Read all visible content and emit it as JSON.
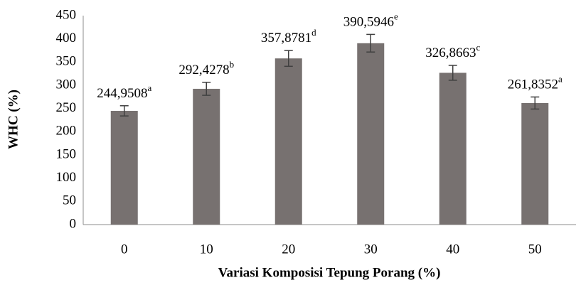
{
  "chart_data": {
    "type": "bar",
    "x_label": "Variasi Komposisi Tepung Porang (%)",
    "y_label": "WHC (%)",
    "categories": [
      "0",
      "10",
      "20",
      "30",
      "40",
      "50"
    ],
    "values": [
      244.9508,
      292.4278,
      357.8781,
      390.5946,
      326.8663,
      261.8352
    ],
    "value_labels": [
      "244,9508",
      "292,4278",
      "357,8781",
      "390,5946",
      "326,8663",
      "261,8352"
    ],
    "significance": [
      "a",
      "b",
      "d",
      "e",
      "c",
      "a"
    ],
    "errors": [
      11,
      14,
      17,
      19,
      16,
      13
    ],
    "color": "#777170",
    "error_color": "#404040",
    "ylim": [
      0,
      450
    ],
    "yticks": [
      0,
      50,
      100,
      150,
      200,
      250,
      300,
      350,
      400,
      450
    ],
    "grid": false
  }
}
